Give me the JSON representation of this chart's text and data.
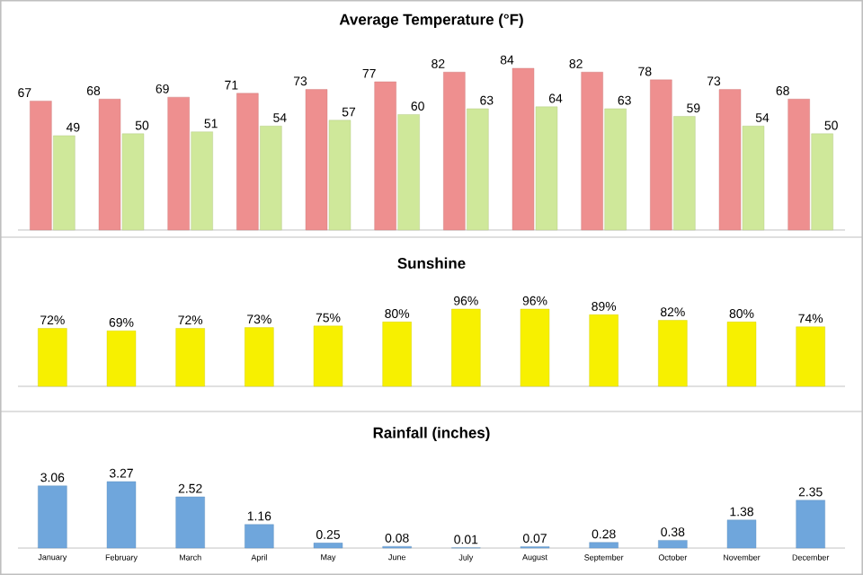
{
  "chart_data": [
    {
      "type": "bar",
      "title": "Average Temperature (°F)",
      "categories": [
        null,
        null,
        null,
        null,
        null,
        null,
        null,
        null,
        null,
        null,
        null,
        null
      ],
      "tick_labels": false,
      "data_labels": true,
      "series": [
        {
          "color": "#ee8f8f",
          "values": [
            67,
            68,
            69,
            71,
            73,
            77,
            82,
            84,
            82,
            78,
            73,
            68
          ]
        },
        {
          "color": "#cfe89a",
          "values": [
            49,
            50,
            51,
            54,
            57,
            60,
            63,
            64,
            63,
            59,
            54,
            50
          ]
        }
      ]
    },
    {
      "type": "bar",
      "title": "Sunshine",
      "categories": [
        null,
        null,
        null,
        null,
        null,
        null,
        null,
        null,
        null,
        null,
        null,
        null
      ],
      "tick_labels": false,
      "color": "#f7f000",
      "values": [
        72,
        69,
        72,
        73,
        75,
        80,
        96,
        96,
        89,
        82,
        80,
        74
      ],
      "value_labels": [
        "72%",
        "69%",
        "72%",
        "73%",
        "75%",
        "80%",
        "96%",
        "96%",
        "89%",
        "82%",
        "80%",
        "74%"
      ]
    },
    {
      "type": "bar",
      "title": "Rainfall (inches)",
      "categories": [
        "January",
        "February",
        "March",
        "April",
        "May",
        "June",
        "July",
        "August",
        "September",
        "October",
        "November",
        "December"
      ],
      "tick_labels": "x",
      "data_labels": true,
      "color": "#6fa6dc",
      "values": [
        3.06,
        3.27,
        2.52,
        1.16,
        0.25,
        0.08,
        0.01,
        0.07,
        0.28,
        0.38,
        1.38,
        2.35
      ]
    }
  ]
}
